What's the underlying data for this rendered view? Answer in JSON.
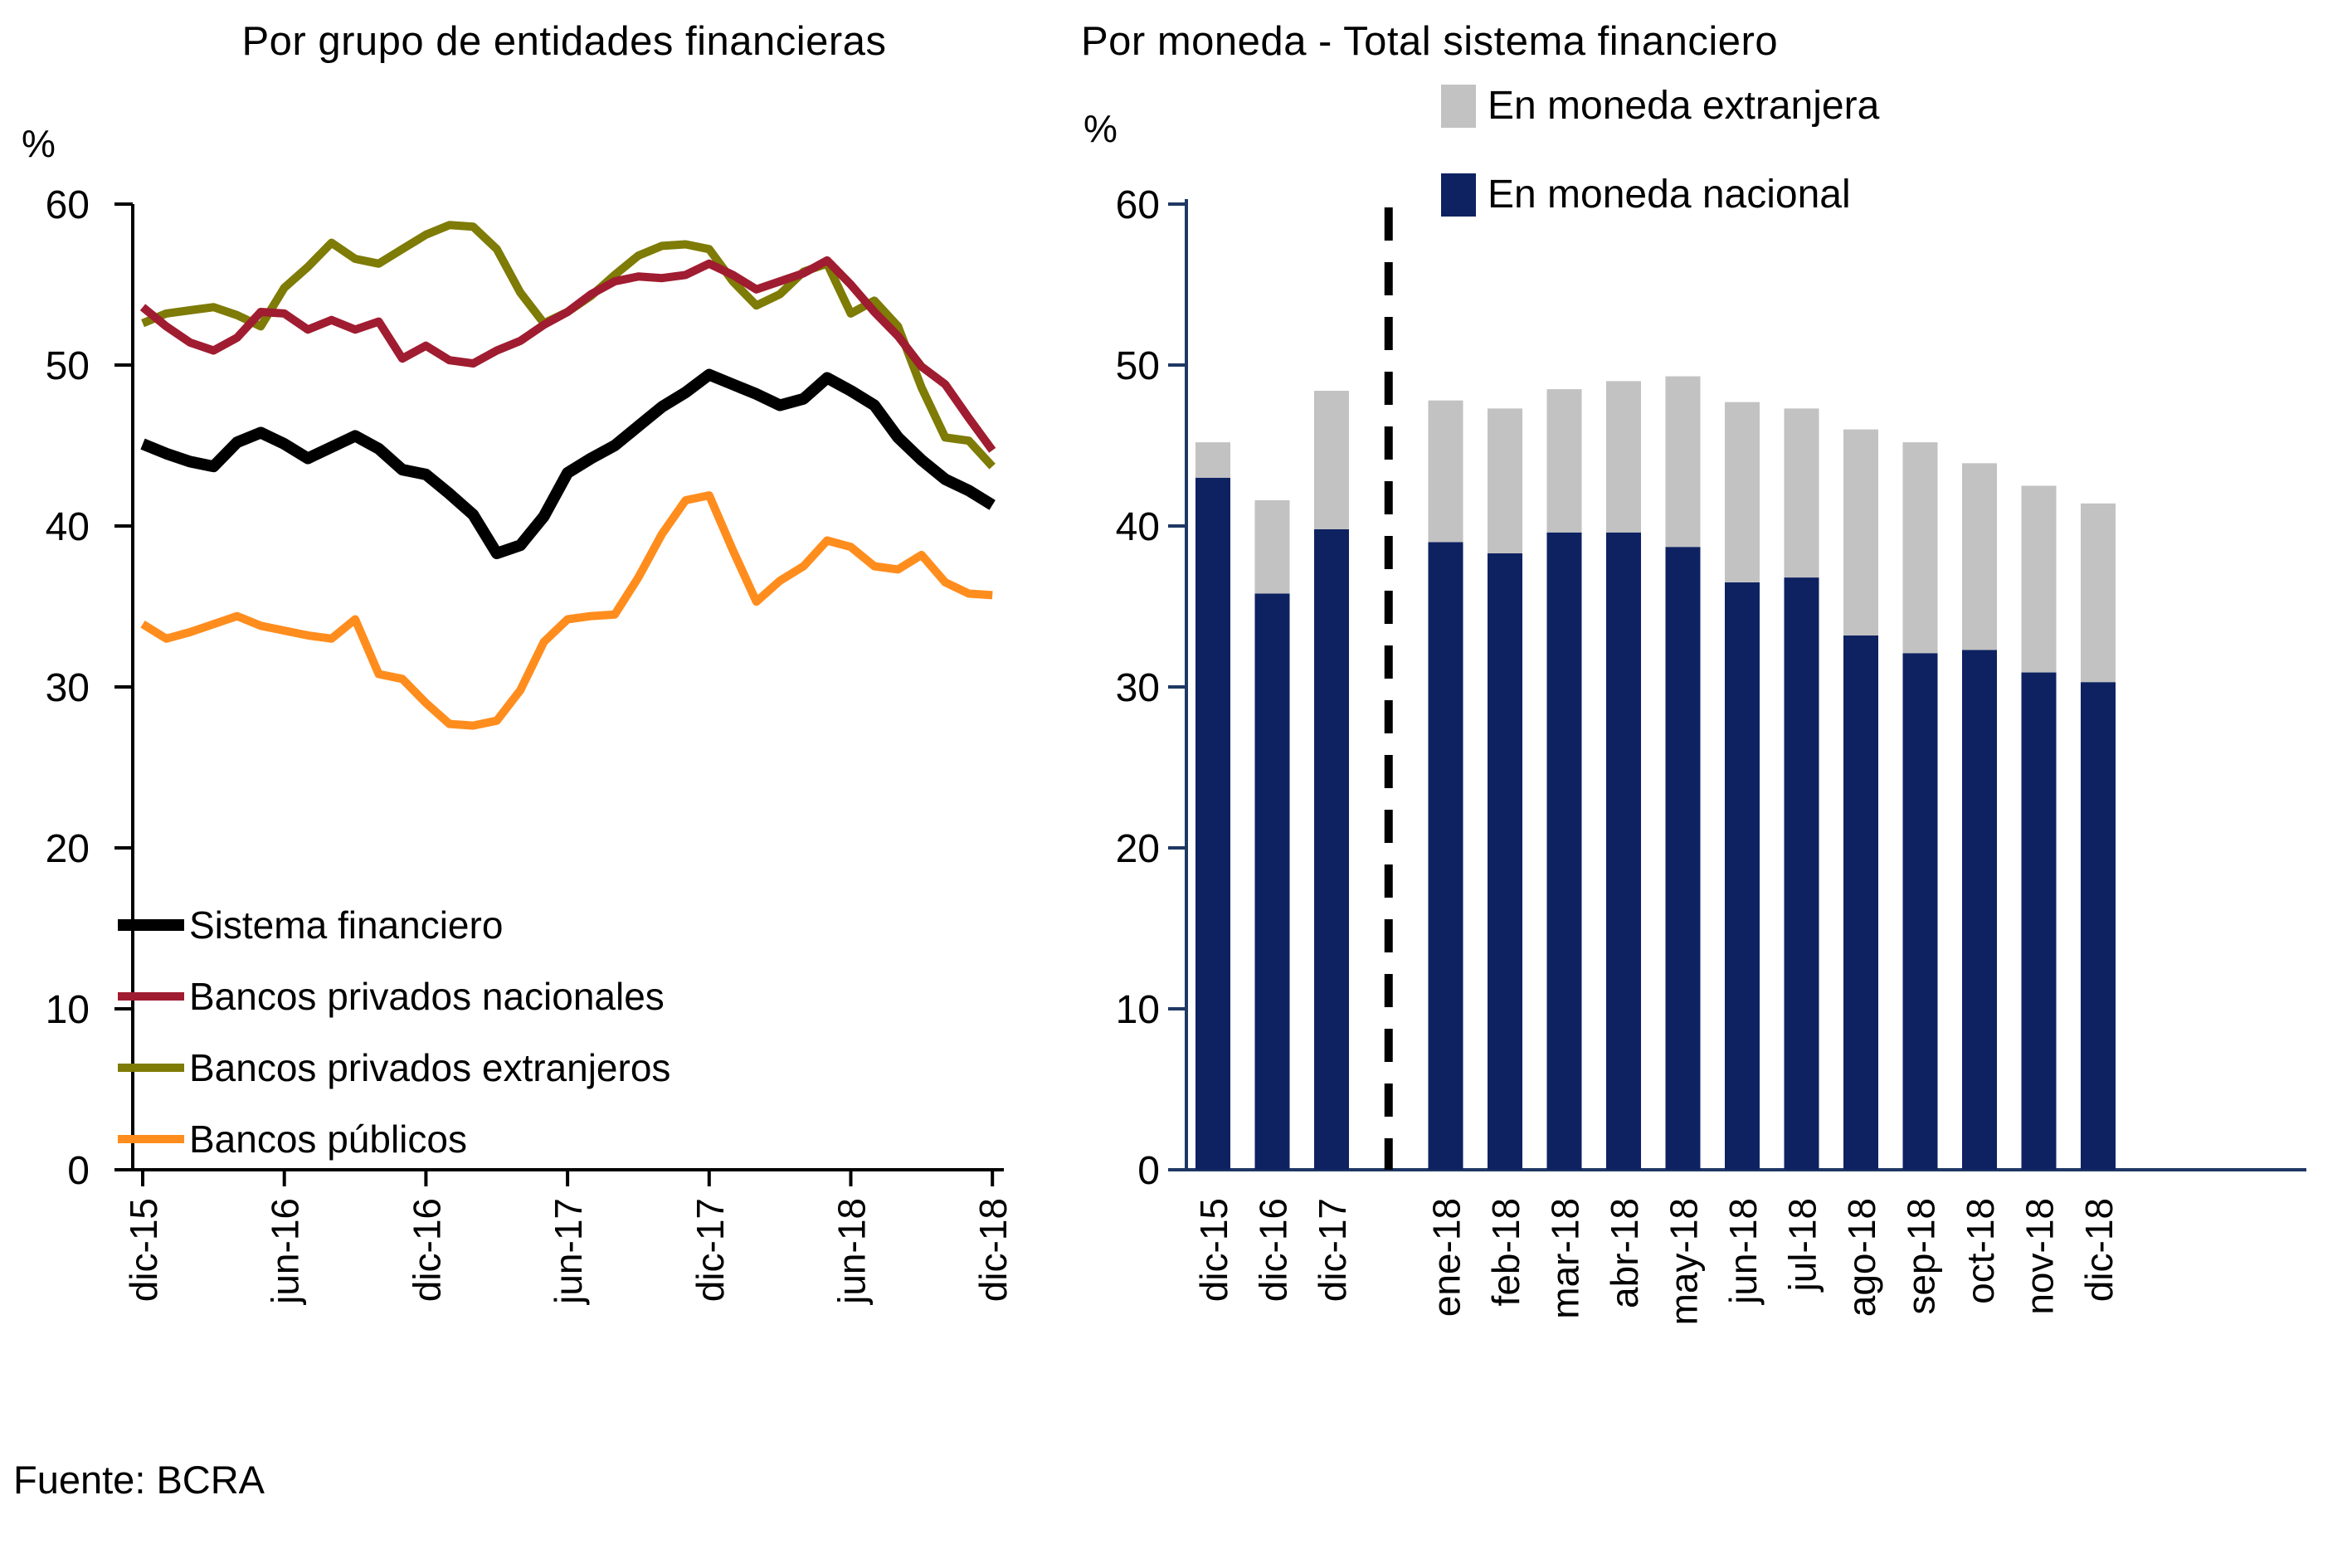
{
  "source_note": "Fuente: BCRA",
  "chart_data": [
    {
      "type": "line",
      "title": "Por grupo de entidades financieras",
      "unit_label": "%",
      "ylabel": "%",
      "ylim": [
        0,
        60
      ],
      "y_ticks": [
        0,
        10,
        20,
        30,
        40,
        50,
        60
      ],
      "grid": false,
      "legend_position": "bottom-left-inside",
      "n_points": 37,
      "x_start": "dic-15",
      "x_end": "dic-18",
      "x_tick_labels": [
        "dic-15",
        "jun-16",
        "dic-16",
        "jun-17",
        "dic-17",
        "jun-18",
        "dic-18"
      ],
      "x_tick_point_index": [
        0,
        6,
        12,
        18,
        24,
        30,
        36
      ],
      "series": [
        {
          "name": "Sistema financiero",
          "color": "#000000",
          "stroke_width": 14,
          "values": [
            45.1,
            44.5,
            44.0,
            43.7,
            45.2,
            45.8,
            45.1,
            44.2,
            44.9,
            45.6,
            44.8,
            43.5,
            43.2,
            42.0,
            40.7,
            38.3,
            38.8,
            40.6,
            43.3,
            44.2,
            45.0,
            46.2,
            47.4,
            48.3,
            49.4,
            48.8,
            48.2,
            47.5,
            47.9,
            49.2,
            48.4,
            47.5,
            45.5,
            44.1,
            42.9,
            42.2,
            41.3
          ]
        },
        {
          "name": "Bancos privados nacionales",
          "color": "#A01C30",
          "stroke_width": 10,
          "values": [
            53.6,
            52.4,
            51.4,
            50.9,
            51.7,
            53.3,
            53.2,
            52.2,
            52.8,
            52.2,
            52.7,
            50.4,
            51.2,
            50.3,
            50.1,
            50.9,
            51.5,
            52.5,
            53.3,
            54.4,
            55.2,
            55.5,
            55.4,
            55.6,
            56.3,
            55.6,
            54.7,
            55.2,
            55.7,
            56.5,
            55.0,
            53.3,
            51.8,
            49.9,
            48.8,
            46.7,
            44.7
          ]
        },
        {
          "name": "Bancos privados extranjeros",
          "color": "#7E7B06",
          "stroke_width": 10,
          "values": [
            52.6,
            53.2,
            53.4,
            53.6,
            53.1,
            52.4,
            54.8,
            56.1,
            57.6,
            56.6,
            56.3,
            57.2,
            58.1,
            58.7,
            58.6,
            57.2,
            54.5,
            52.6,
            53.3,
            54.3,
            55.6,
            56.8,
            57.4,
            57.5,
            57.2,
            55.2,
            53.7,
            54.4,
            55.8,
            56.3,
            53.2,
            54.0,
            52.4,
            48.6,
            45.5,
            45.3,
            43.7
          ]
        },
        {
          "name": "Bancos públicos",
          "color": "#FF8D1E",
          "stroke_width": 10,
          "values": [
            33.9,
            33.0,
            33.4,
            33.9,
            34.4,
            33.8,
            33.5,
            33.2,
            33.0,
            34.2,
            30.8,
            30.5,
            29.0,
            27.7,
            27.6,
            27.9,
            29.8,
            32.8,
            34.2,
            34.4,
            34.5,
            36.8,
            39.5,
            41.6,
            41.9,
            38.5,
            35.3,
            36.6,
            37.5,
            39.1,
            38.7,
            37.5,
            37.3,
            38.2,
            36.5,
            35.8,
            35.7
          ]
        }
      ]
    },
    {
      "type": "stacked-bar",
      "title": "Por moneda - Total sistema financiero",
      "unit_label": "%",
      "ylabel": "%",
      "ylim": [
        0,
        60
      ],
      "y_ticks": [
        0,
        10,
        20,
        30,
        40,
        50,
        60
      ],
      "grid": false,
      "axis_color": "#1F3864",
      "separator_after_index": 2,
      "categories": [
        "dic-15",
        "dic-16",
        "dic-17",
        "ene-18",
        "feb-18",
        "mar-18",
        "abr-18",
        "may-18",
        "jun-18",
        "jul-18",
        "ago-18",
        "sep-18",
        "oct-18",
        "nov-18",
        "dic-18"
      ],
      "legend_items": [
        "En moneda extranjera",
        "En moneda nacional"
      ],
      "series": [
        {
          "name": "En moneda nacional",
          "color": "#0E2262",
          "values": [
            43.0,
            35.8,
            39.8,
            39.0,
            38.3,
            39.6,
            39.6,
            38.7,
            36.5,
            36.8,
            33.2,
            32.1,
            32.3,
            30.9,
            30.3
          ]
        },
        {
          "name": "En moneda extranjera",
          "color": "#C2C2C2",
          "values": [
            2.2,
            5.8,
            8.6,
            8.8,
            9.0,
            8.9,
            9.4,
            10.6,
            11.2,
            10.5,
            12.8,
            13.1,
            11.6,
            11.6,
            11.1
          ]
        }
      ]
    }
  ]
}
